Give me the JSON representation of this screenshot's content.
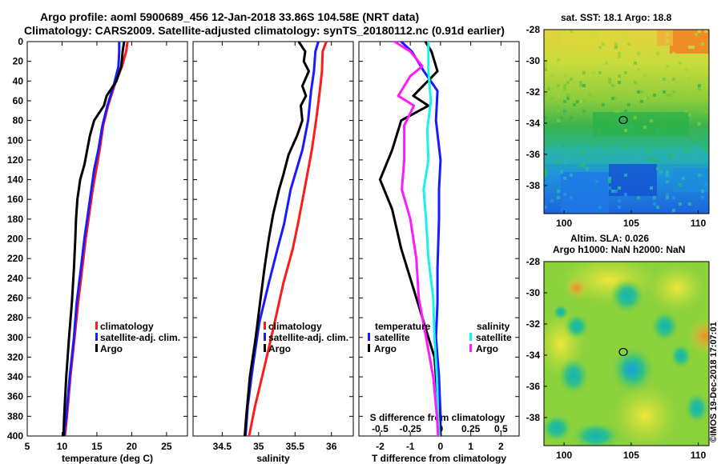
{
  "header": {
    "line1": "Argo profile: aoml 5900689_456 12-Jan-2018 33.86S 104.58E (NRT data)",
    "line2": "Climatology: CARS2009. Satellite-adjusted climatology: synTS_20180112.nc (0.91d earlier)"
  },
  "colors": {
    "climatology": "#ff1a1a",
    "satellite": "#1a1aff",
    "argo": "#000000",
    "sal_satellite": "#19f0f0",
    "sal_argo": "#ff19ff"
  },
  "chart_data": [
    {
      "type": "line",
      "id": "temperature",
      "xlabel": "temperature (deg C)",
      "ylabel": "",
      "xlim": [
        5,
        28
      ],
      "ylim": [
        400,
        0
      ],
      "xticks": [
        "5",
        "10",
        "15",
        "20",
        "25"
      ],
      "yticks": [
        "0",
        "20",
        "40",
        "60",
        "80",
        "100",
        "120",
        "140",
        "160",
        "180",
        "200",
        "220",
        "240",
        "260",
        "280",
        "300",
        "320",
        "340",
        "360",
        "380",
        "400"
      ],
      "legend": [
        "climatology",
        "satellite-adj. clim.",
        "Argo"
      ],
      "series": [
        {
          "name": "climatology",
          "color": "#ff1a1a",
          "points": [
            [
              19.4,
              0
            ],
            [
              19.2,
              10
            ],
            [
              18.6,
              25
            ],
            [
              17.5,
              45
            ],
            [
              16.6,
              65
            ],
            [
              15.9,
              85
            ],
            [
              15.4,
              110
            ],
            [
              14.9,
              130
            ],
            [
              14.4,
              150
            ],
            [
              13.9,
              175
            ],
            [
              13.4,
              200
            ],
            [
              12.9,
              230
            ],
            [
              12.3,
              265
            ],
            [
              11.8,
              300
            ],
            [
              11.2,
              340
            ],
            [
              10.7,
              380
            ],
            [
              10.4,
              400
            ]
          ]
        },
        {
          "name": "satellite-adj. clim.",
          "color": "#1a1aff",
          "points": [
            [
              18.2,
              0
            ],
            [
              18.2,
              10
            ],
            [
              18.1,
              25
            ],
            [
              17.4,
              45
            ],
            [
              16.5,
              65
            ],
            [
              15.8,
              85
            ],
            [
              15.2,
              110
            ],
            [
              14.6,
              130
            ],
            [
              14.2,
              150
            ],
            [
              13.7,
              175
            ],
            [
              13.2,
              200
            ],
            [
              12.7,
              230
            ],
            [
              12.1,
              265
            ],
            [
              11.7,
              300
            ],
            [
              11.1,
              340
            ],
            [
              10.6,
              380
            ],
            [
              10.3,
              400
            ]
          ]
        },
        {
          "name": "Argo",
          "color": "#000000",
          "points": [
            [
              18.9,
              0
            ],
            [
              18.7,
              10
            ],
            [
              18.5,
              25
            ],
            [
              17.8,
              40
            ],
            [
              16.4,
              55
            ],
            [
              16.0,
              65
            ],
            [
              14.6,
              80
            ],
            [
              14.0,
              95
            ],
            [
              13.6,
              110
            ],
            [
              13.2,
              125
            ],
            [
              12.6,
              140
            ],
            [
              12.2,
              160
            ],
            [
              12.0,
              180
            ],
            [
              11.9,
              200
            ],
            [
              11.7,
              230
            ],
            [
              11.4,
              265
            ],
            [
              11.0,
              300
            ],
            [
              10.6,
              340
            ],
            [
              10.3,
              380
            ],
            [
              10.2,
              400
            ]
          ]
        }
      ]
    },
    {
      "type": "line",
      "id": "salinity",
      "xlabel": "salinity",
      "xlim": [
        34.1,
        36.3
      ],
      "ylim": [
        400,
        0
      ],
      "xticks": [
        "34.5",
        "35",
        "35.5",
        "36"
      ],
      "legend": [
        "climatology",
        "satellite-adj. clim.",
        "Argo"
      ],
      "series": [
        {
          "name": "climatology",
          "color": "#ff1a1a",
          "points": [
            [
              35.93,
              0
            ],
            [
              35.88,
              10
            ],
            [
              35.87,
              30
            ],
            [
              35.84,
              50
            ],
            [
              35.79,
              80
            ],
            [
              35.73,
              110
            ],
            [
              35.63,
              150
            ],
            [
              35.54,
              185
            ],
            [
              35.47,
              210
            ],
            [
              35.34,
              245
            ],
            [
              35.22,
              285
            ],
            [
              35.08,
              330
            ],
            [
              34.95,
              370
            ],
            [
              34.87,
              400
            ]
          ]
        },
        {
          "name": "satellite-adj. clim.",
          "color": "#1a1aff",
          "points": [
            [
              35.82,
              0
            ],
            [
              35.78,
              10
            ],
            [
              35.76,
              30
            ],
            [
              35.72,
              50
            ],
            [
              35.68,
              80
            ],
            [
              35.6,
              110
            ],
            [
              35.44,
              150
            ],
            [
              35.35,
              185
            ],
            [
              35.26,
              210
            ],
            [
              35.14,
              245
            ],
            [
              35.01,
              285
            ],
            [
              34.92,
              330
            ],
            [
              34.85,
              370
            ],
            [
              34.82,
              400
            ]
          ]
        },
        {
          "name": "Argo",
          "color": "#000000",
          "points": [
            [
              35.55,
              0
            ],
            [
              35.64,
              10
            ],
            [
              35.62,
              20
            ],
            [
              35.69,
              30
            ],
            [
              35.6,
              45
            ],
            [
              35.65,
              55
            ],
            [
              35.58,
              65
            ],
            [
              35.6,
              80
            ],
            [
              35.53,
              95
            ],
            [
              35.41,
              115
            ],
            [
              35.34,
              135
            ],
            [
              35.28,
              150
            ],
            [
              35.2,
              175
            ],
            [
              35.14,
              200
            ],
            [
              35.08,
              230
            ],
            [
              35.02,
              265
            ],
            [
              34.96,
              300
            ],
            [
              34.88,
              340
            ],
            [
              34.83,
              380
            ],
            [
              34.81,
              400
            ]
          ]
        }
      ]
    },
    {
      "type": "line",
      "id": "difference",
      "xlabel": "T difference from climatology",
      "xlabel_top": "S difference from climatology",
      "xlim": [
        -2.7,
        2.6
      ],
      "ylim": [
        400,
        0
      ],
      "xlim_top": [
        -0.675,
        0.65
      ],
      "xticks": [
        "-2",
        "-1",
        "0",
        "1",
        "2"
      ],
      "xticks_top": [
        "-0.5",
        "-0.25",
        "0",
        "0.25",
        "0.5"
      ],
      "legend_titles": [
        "temperature",
        "salinity"
      ],
      "legend": [
        "satellite",
        "Argo",
        "satellite",
        "Argo"
      ],
      "series": [
        {
          "name": "T satellite",
          "color": "#1a1aff",
          "points": [
            [
              -1.3,
              0
            ],
            [
              -0.95,
              10
            ],
            [
              -0.55,
              30
            ],
            [
              -0.1,
              50
            ],
            [
              -0.15,
              80
            ],
            [
              0.0,
              120
            ],
            [
              -0.05,
              150
            ],
            [
              -0.05,
              180
            ],
            [
              -0.1,
              230
            ],
            [
              -0.1,
              265
            ],
            [
              -0.15,
              300
            ],
            [
              -0.05,
              340
            ],
            [
              0.0,
              380
            ],
            [
              0.0,
              400
            ]
          ]
        },
        {
          "name": "T Argo",
          "color": "#000000",
          "points": [
            [
              -0.5,
              0
            ],
            [
              -0.3,
              10
            ],
            [
              -0.1,
              30
            ],
            [
              -0.9,
              55
            ],
            [
              -0.4,
              65
            ],
            [
              -1.3,
              80
            ],
            [
              -1.6,
              110
            ],
            [
              -2.0,
              140
            ],
            [
              -1.6,
              170
            ],
            [
              -1.3,
              210
            ],
            [
              -0.9,
              250
            ],
            [
              -0.5,
              290
            ],
            [
              -0.2,
              320
            ],
            [
              -0.1,
              360
            ],
            [
              0.0,
              400
            ]
          ]
        },
        {
          "name": "S satellite",
          "color": "#19f0f0",
          "points": [
            [
              -0.1,
              0
            ],
            [
              -0.1,
              30
            ],
            [
              -0.08,
              60
            ],
            [
              -0.11,
              90
            ],
            [
              -0.1,
              120
            ],
            [
              -0.14,
              150
            ],
            [
              -0.12,
              180
            ],
            [
              -0.1,
              220
            ],
            [
              -0.06,
              260
            ],
            [
              -0.05,
              300
            ],
            [
              -0.03,
              340
            ],
            [
              -0.02,
              380
            ],
            [
              -0.01,
              400
            ]
          ]
        },
        {
          "name": "S Argo",
          "color": "#ff19ff",
          "points": [
            [
              -0.38,
              0
            ],
            [
              -0.25,
              10
            ],
            [
              -0.15,
              25
            ],
            [
              -0.25,
              35
            ],
            [
              -0.35,
              55
            ],
            [
              -0.22,
              65
            ],
            [
              -0.3,
              85
            ],
            [
              -0.3,
              120
            ],
            [
              -0.32,
              150
            ],
            [
              -0.25,
              180
            ],
            [
              -0.2,
              220
            ],
            [
              -0.18,
              260
            ],
            [
              -0.12,
              300
            ],
            [
              -0.06,
              340
            ],
            [
              -0.03,
              380
            ],
            [
              -0.02,
              400
            ]
          ]
        }
      ]
    },
    {
      "type": "heatmap",
      "id": "sst_map",
      "title": "sat. SST: 18.1 Argo: 18.8",
      "xlim": [
        98.5,
        110.8
      ],
      "ylim": [
        -39.8,
        -28
      ],
      "xticks": [
        "100",
        "105",
        "110"
      ],
      "yticks": [
        "-28",
        "-30",
        "-32",
        "-34",
        "-36",
        "-38"
      ],
      "marker": {
        "lon": 104.58,
        "lat": -33.86
      }
    },
    {
      "type": "heatmap",
      "id": "sla_map",
      "title1": "Altim. SLA: 0.026",
      "title2": "Argo h1000: NaN h2000: NaN",
      "xlim": [
        98.5,
        110.8
      ],
      "ylim": [
        -39.8,
        -28
      ],
      "xticks": [
        "100",
        "105",
        "110"
      ],
      "yticks": [
        "-28",
        "-30",
        "-32",
        "-34",
        "-36",
        "-38"
      ],
      "marker": {
        "lon": 104.58,
        "lat": -33.86
      }
    }
  ],
  "watermark": "©IMOS 19-Dec-2018 17:07:01"
}
